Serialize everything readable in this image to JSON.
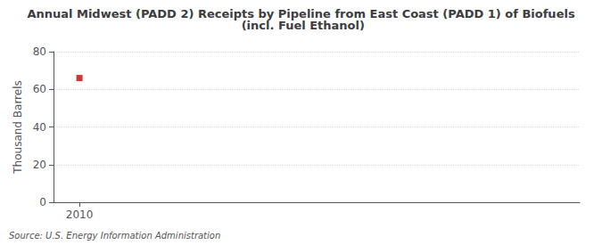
{
  "chart_data": {
    "type": "scatter",
    "title": "Annual Midwest (PADD 2) Receipts by Pipeline from East Coast (PADD 1) of Biofuels (incl. Fuel Ethanol)",
    "ylabel": "Thousand Barrels",
    "source": "Source: U.S. Energy Information Administration",
    "x": [
      2010
    ],
    "values": [
      66
    ],
    "color": "#cc0000",
    "marker": "square",
    "xlim": [
      2009.3,
      2023.5
    ],
    "xticks": [
      2010
    ],
    "ylim": [
      0,
      80
    ],
    "yticks": [
      0,
      20,
      40,
      60,
      80
    ],
    "grid": true
  }
}
